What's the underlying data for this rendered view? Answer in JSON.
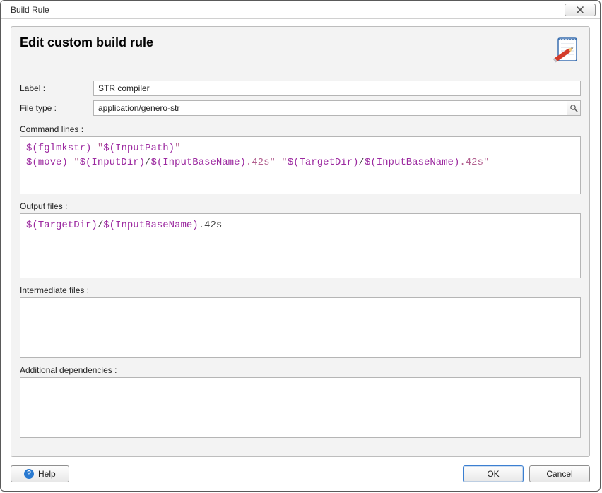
{
  "window": {
    "title": "Build Rule"
  },
  "header": {
    "title": "Edit custom build rule",
    "icon": "notepad-pencil-icon"
  },
  "fields": {
    "label": {
      "label": "Label :",
      "value": "STR compiler"
    },
    "fileType": {
      "label": "File type :",
      "value": "application/genero-str"
    }
  },
  "sections": {
    "commandLines": {
      "label": "Command lines :",
      "lines": [
        [
          {
            "t": "var",
            "v": "$(fglmkstr)"
          },
          {
            "t": "plain",
            "v": " "
          },
          {
            "t": "str",
            "v": "\""
          },
          {
            "t": "var",
            "v": "$(InputPath)"
          },
          {
            "t": "str",
            "v": "\""
          }
        ],
        [
          {
            "t": "var",
            "v": "$(move)"
          },
          {
            "t": "plain",
            "v": " "
          },
          {
            "t": "str",
            "v": "\""
          },
          {
            "t": "var",
            "v": "$(InputDir)"
          },
          {
            "t": "slash",
            "v": "/"
          },
          {
            "t": "var",
            "v": "$(InputBaseName)"
          },
          {
            "t": "str",
            "v": ".42s\""
          },
          {
            "t": "plain",
            "v": " "
          },
          {
            "t": "str",
            "v": "\""
          },
          {
            "t": "var",
            "v": "$(TargetDir)"
          },
          {
            "t": "slash",
            "v": "/"
          },
          {
            "t": "var",
            "v": "$(InputBaseName)"
          },
          {
            "t": "str",
            "v": ".42s\""
          }
        ]
      ]
    },
    "outputFiles": {
      "label": "Output files :",
      "lines": [
        [
          {
            "t": "var",
            "v": "$(TargetDir)"
          },
          {
            "t": "slash",
            "v": "/"
          },
          {
            "t": "var",
            "v": "$(InputBaseName)"
          },
          {
            "t": "plain",
            "v": ".42s"
          }
        ]
      ]
    },
    "intermediateFiles": {
      "label": "Intermediate files :",
      "lines": []
    },
    "additionalDeps": {
      "label": "Additional dependencies :",
      "lines": []
    }
  },
  "buttons": {
    "help": "Help",
    "ok": "OK",
    "cancel": "Cancel"
  },
  "colors": {
    "panel_bg": "#f3f3f3",
    "border": "#b5b5b5",
    "token_var": "#9c2aa0",
    "token_str": "#b25f8f",
    "token_plain": "#444444",
    "ok_border": "#3b7fd1"
  }
}
